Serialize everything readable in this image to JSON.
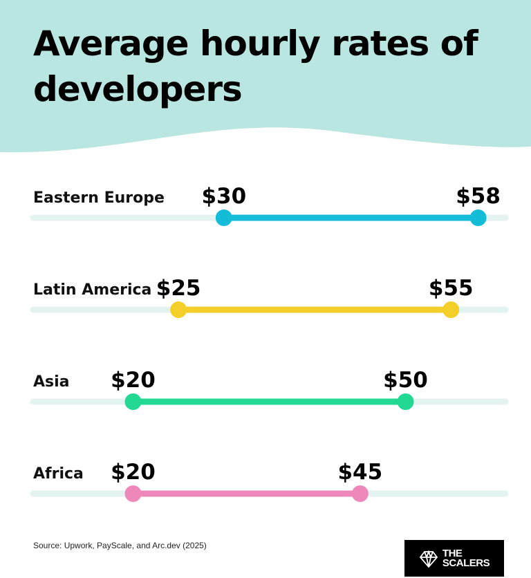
{
  "title": "Average hourly rates of developers",
  "source": "Source: Upwork, PayScale, and Arc.dev (2025)",
  "logo": "THE SCALERS",
  "colors": {
    "header_bg": "#b9e6e0",
    "track": "#e3f3f1"
  },
  "chart_data": {
    "type": "range",
    "title": "Average hourly rates of developers",
    "xlabel": "",
    "ylabel": "",
    "xlim": [
      9,
      61
    ],
    "grid": false,
    "categories": [
      "Eastern Europe",
      "Latin America",
      "Asia",
      "Africa"
    ],
    "series": [
      {
        "category": "Eastern Europe",
        "min": 30,
        "max": 58,
        "min_label": "$30",
        "max_label": "$58",
        "color": "#14bcd8"
      },
      {
        "category": "Latin America",
        "min": 25,
        "max": 55,
        "min_label": "$25",
        "max_label": "$55",
        "color": "#f4cf2a"
      },
      {
        "category": "Asia",
        "min": 20,
        "max": 50,
        "min_label": "$20",
        "max_label": "$50",
        "color": "#22d892"
      },
      {
        "category": "Africa",
        "min": 20,
        "max": 45,
        "min_label": "$20",
        "max_label": "$45",
        "color": "#ee88bb"
      }
    ]
  }
}
